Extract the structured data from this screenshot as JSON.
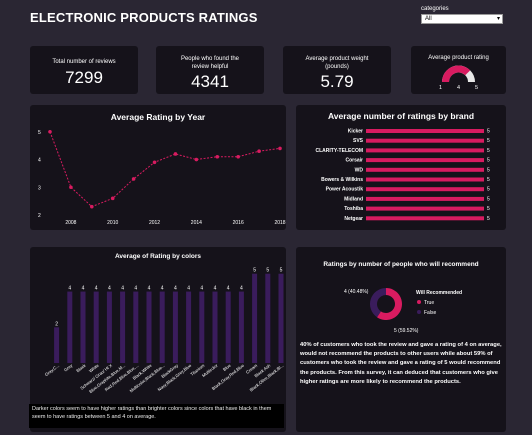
{
  "title": "ELECTRONIC PRODUCTS RATINGS",
  "filter": {
    "label": "categories",
    "value": "All"
  },
  "kpis": {
    "total_reviews": {
      "label": "Total number of reviews",
      "value": "7299"
    },
    "helpful": {
      "label": "People who found the review helpful",
      "value": "4341"
    },
    "weight": {
      "label": "Average product weight (pounds)",
      "value": "5.79"
    },
    "rating": {
      "label": "Average product rating",
      "min": "1",
      "value": "4",
      "max": "5",
      "fraction": 0.75
    }
  },
  "colors": {
    "accent": "#d81b60",
    "purple": "#3a1c5c",
    "card": "#15121a",
    "bg": "#2a2633"
  },
  "chart_year": {
    "type": "line",
    "title": "Average Rating by Year",
    "x": [
      2007,
      2008,
      2009,
      2010,
      2011,
      2012,
      2013,
      2014,
      2015,
      2016,
      2017,
      2018
    ],
    "values": [
      5.0,
      3.0,
      2.3,
      2.6,
      3.3,
      3.9,
      4.2,
      4.0,
      4.1,
      4.1,
      4.3,
      4.4
    ],
    "xticks": [
      2008,
      2010,
      2012,
      2014,
      2016,
      2018
    ],
    "yticks": [
      2,
      3,
      4,
      5
    ],
    "ylim": [
      2,
      5.1
    ]
  },
  "chart_brand": {
    "type": "bar",
    "title": "Average number of ratings by brand",
    "categories": [
      "Kicker",
      "SVS",
      "CLARITY-TELECOM",
      "Corsair",
      "WD",
      "Bowers & Wilkins",
      "Power Acoustik",
      "Midland",
      "Toshiba",
      "Netgear"
    ],
    "values": [
      5,
      5,
      5,
      5,
      5,
      5,
      5,
      5,
      5,
      5
    ],
    "xlim": [
      0,
      5
    ]
  },
  "chart_colors": {
    "type": "bar",
    "title": "Average of Rating by colors",
    "categories": [
      "Gray,C...",
      "Grey",
      "Black",
      "White",
      "Schwarz/ Grau/ Hl X",
      "Blue,Graphite,Blue,M...",
      "Red,Red,Blue,Blue,...",
      "Black,White",
      "Multicolor,Black,Blue...",
      "BlackGray",
      "Navy,Black,Grey,Blue",
      "Titanium",
      "Multicolor",
      "Blue",
      "Black,Gray,Red,Blue",
      "Cream",
      "Black Ash",
      "Black,Olive,Black,Bl..."
    ],
    "values": [
      2,
      4,
      4,
      4,
      4,
      4,
      4,
      4,
      4,
      4,
      4,
      4,
      4,
      4,
      4,
      5,
      5,
      5
    ],
    "ylim": [
      0,
      5.6
    ]
  },
  "note": "Darker colors seem to have higher ratings than brighter colors since colors that have black in them seem to have ratings between 5 and 4 on average.",
  "chart_recommend": {
    "type": "pie",
    "title": "Ratings by number of people who will recommend",
    "legend_title": "Will Recommended",
    "slices": [
      {
        "name": "True",
        "label": "5 (59.52%)",
        "value": 59.52
      },
      {
        "name": "False",
        "label": "4 (40.48%)",
        "value": 40.48
      }
    ]
  },
  "recommend_text": "40% of customers who took the review and gave a rating of 4 on average, would not recommend the products to other users while about 59% of customers who took the review and gave a rating of 5 would recommend the products. From this survey, it can deduced that customers who give higher ratings are more likely to recommend the products."
}
